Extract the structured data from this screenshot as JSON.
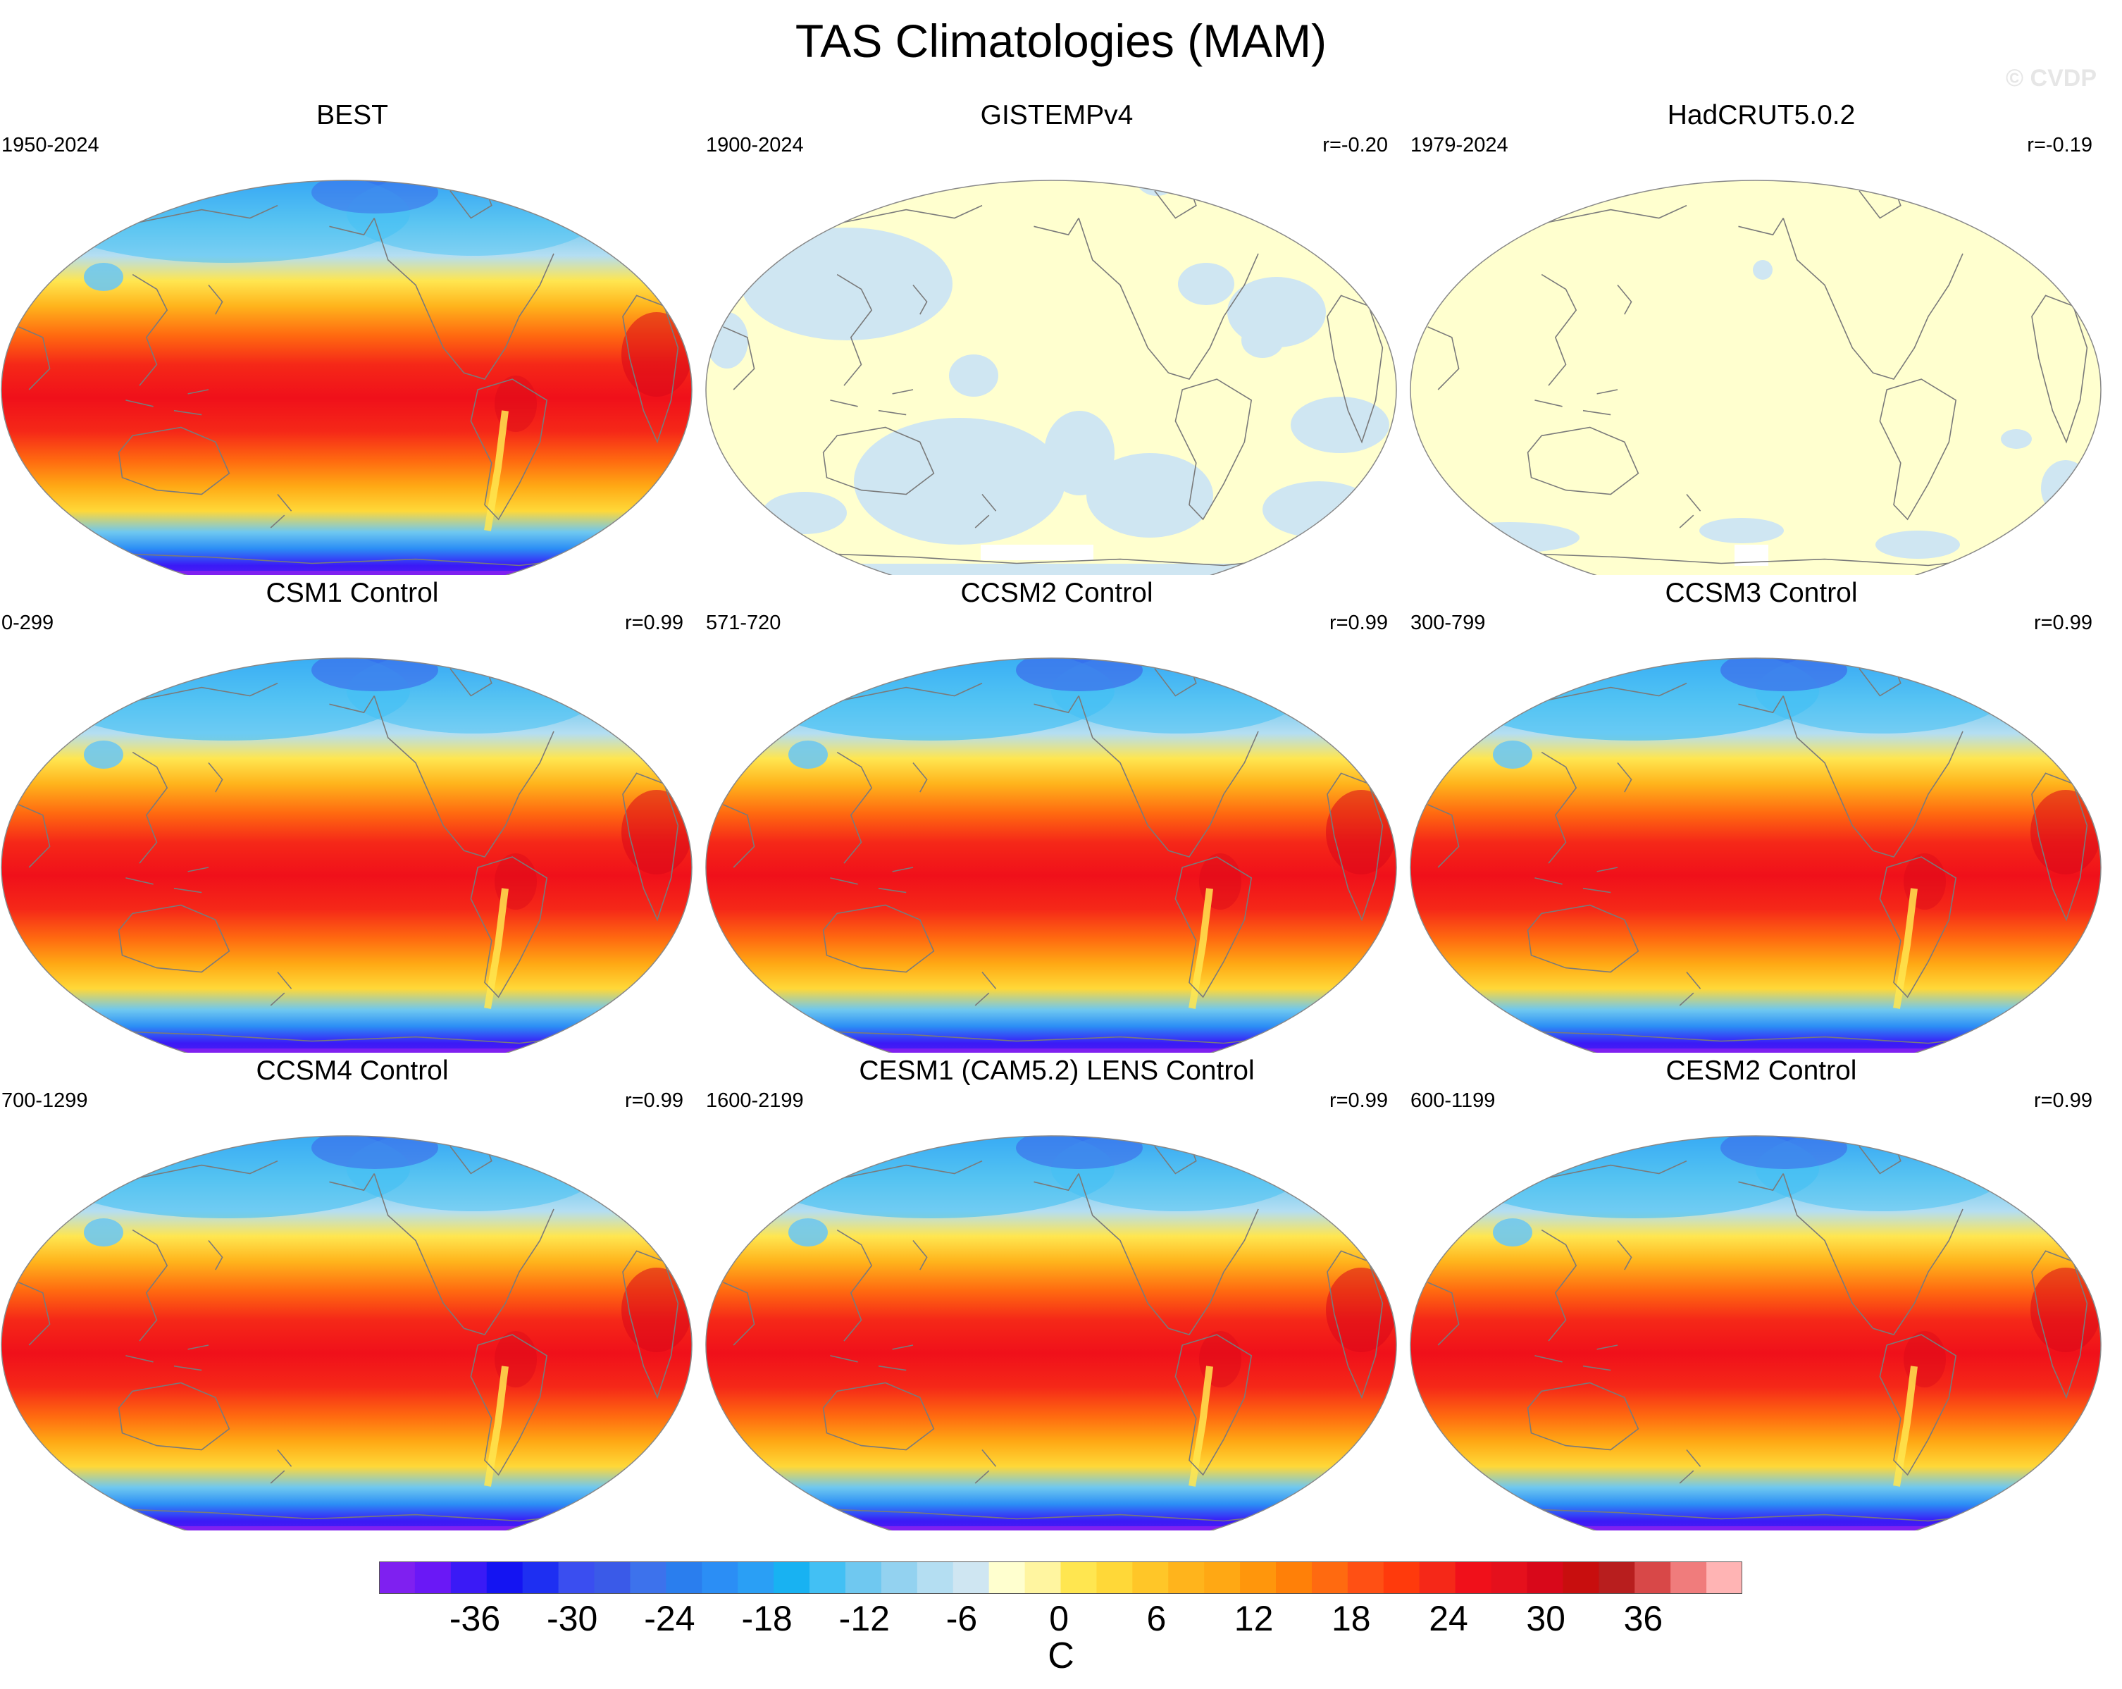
{
  "title": "TAS Climatologies (MAM)",
  "watermark": "© CVDP",
  "panels": [
    {
      "id": "best",
      "title": "BEST",
      "period": "1950-2024",
      "corr": "",
      "style": "model",
      "cold": 0.75
    },
    {
      "id": "gistemp",
      "title": "GISTEMPv4",
      "period": "1900-2024",
      "corr": "r=-0.20",
      "style": "anom_gis",
      "cold": 0
    },
    {
      "id": "hadcrut",
      "title": "HadCRUT5.0.2",
      "period": "1979-2024",
      "corr": "r=-0.19",
      "style": "anom_had",
      "cold": 0
    },
    {
      "id": "csm1",
      "title": "CSM1 Control",
      "period": "0-299",
      "corr": "r=0.99",
      "style": "model",
      "cold": 0.9
    },
    {
      "id": "ccsm2",
      "title": "CCSM2 Control",
      "period": "571-720",
      "corr": "r=0.99",
      "style": "model",
      "cold": 0.95
    },
    {
      "id": "ccsm3",
      "title": "CCSM3 Control",
      "period": "300-799",
      "corr": "r=0.99",
      "style": "model",
      "cold": 0.95
    },
    {
      "id": "ccsm4",
      "title": "CCSM4 Control",
      "period": "700-1299",
      "corr": "r=0.99",
      "style": "model",
      "cold": 0.85
    },
    {
      "id": "cesm1",
      "title": "CESM1 (CAM5.2) LENS Control",
      "period": "1600-2199",
      "corr": "r=0.99",
      "style": "model",
      "cold": 0.85
    },
    {
      "id": "cesm2",
      "title": "CESM2 Control",
      "period": "600-1199",
      "corr": "r=0.99",
      "style": "model",
      "cold": 0.85
    }
  ],
  "colorbar": {
    "unit": "C",
    "tick_labels": [
      "-36",
      "-30",
      "-24",
      "-18",
      "-12",
      "-6",
      "0",
      "6",
      "12",
      "18",
      "24",
      "30",
      "36"
    ],
    "colors": [
      "#7f20f0",
      "#6a18f6",
      "#3a1af6",
      "#1414f2",
      "#1e2ff2",
      "#3a4ef0",
      "#3a5ae8",
      "#3d72ec",
      "#2a7eee",
      "#2b8ef5",
      "#2a9ff5",
      "#18b2f2",
      "#42c0f4",
      "#6fc8f0",
      "#93d2f0",
      "#b4def2",
      "#cfe6f2",
      "#ffffcf",
      "#fff5a0",
      "#ffe650",
      "#ffd838",
      "#ffc628",
      "#ffb41c",
      "#ffa814",
      "#ff960c",
      "#ff8008",
      "#ff6a10",
      "#ff5014",
      "#ff3a0c",
      "#f52818",
      "#f0101a",
      "#e5101c",
      "#d8081a",
      "#c80e0e",
      "#b81e1e",
      "#d84848",
      "#f07c7c",
      "#ffb4b4"
    ]
  }
}
